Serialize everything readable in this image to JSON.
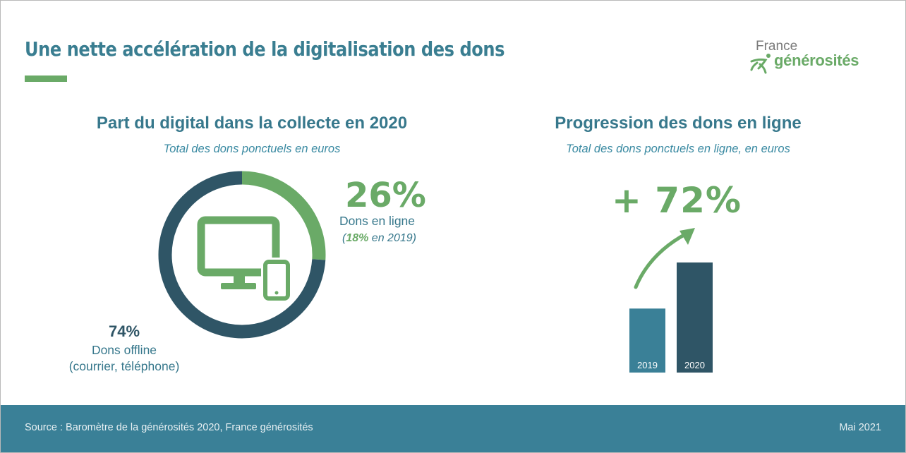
{
  "slide": {
    "title": "Une nette accélération de la digitalisation des dons",
    "logo": {
      "line1": "France",
      "line2": "générosités"
    }
  },
  "left_panel": {
    "title": "Part du digital dans la collecte en 2020",
    "subtitle": "Total des dons ponctuels en euros",
    "online": {
      "pct": "26%",
      "label": "Dons en ligne",
      "prev_open": "(",
      "prev_value": "18%",
      "prev_rest": " en 2019)"
    },
    "offline": {
      "pct": "74%",
      "label": "Dons offline",
      "detail": "(courrier, téléphone)"
    },
    "icon": "computer-and-phone-icon"
  },
  "right_panel": {
    "title": "Progression des dons en ligne",
    "subtitle": "Total des dons ponctuels en ligne, en euros",
    "growth": "+ 72%",
    "icon": "arrow-up-right-icon"
  },
  "footer": {
    "source": "Source : Baromètre de la générosités 2020, France générosités",
    "date": "Mai 2021"
  },
  "colors": {
    "green": "#6aaa67",
    "dark_teal": "#2f5566",
    "teal": "#3a8097",
    "title_teal": "#37788c"
  },
  "chart_data": [
    {
      "type": "pie",
      "categories": [
        "Dons en ligne",
        "Dons offline"
      ],
      "values": [
        26,
        74
      ],
      "colors": [
        "#6aaa67",
        "#2f5566"
      ]
    },
    {
      "type": "bar",
      "categories": [
        "2019",
        "2020"
      ],
      "values": [
        100,
        172
      ],
      "colors": [
        "#3a8097",
        "#2f5566"
      ]
    }
  ]
}
